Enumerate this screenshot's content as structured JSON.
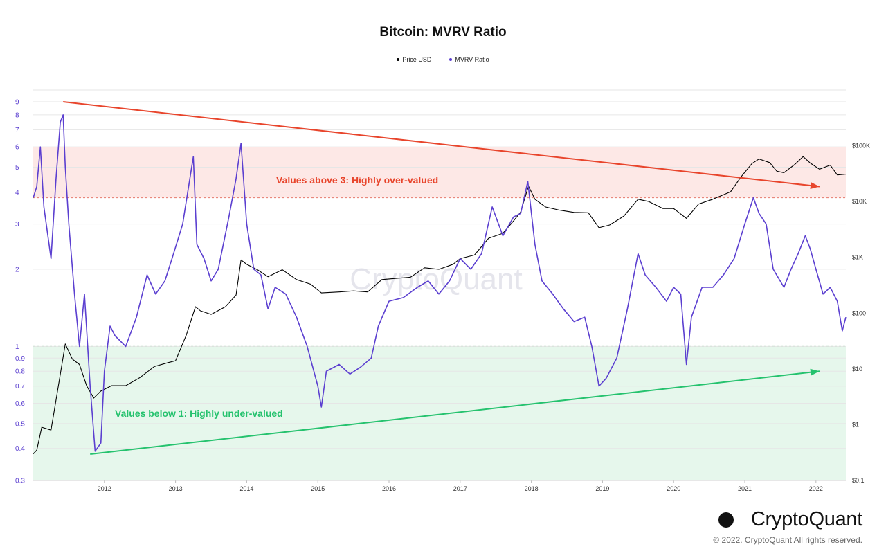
{
  "chart_data": {
    "type": "line",
    "title": "Bitcoin: MVRV Ratio",
    "legend": [
      {
        "name": "Price USD",
        "color": "#000000"
      },
      {
        "name": "MVRV Ratio",
        "color": "#5b3fd0"
      }
    ],
    "legend_position": "top-center",
    "x_ticks": [
      "2012",
      "2013",
      "2014",
      "2015",
      "2016",
      "2017",
      "2018",
      "2019",
      "2020",
      "2021",
      "2022"
    ],
    "x_range": [
      2011.0,
      2022.42
    ],
    "y_left": {
      "scale": "log",
      "range": [
        0.3,
        10
      ],
      "ticks": [
        "0.3",
        "0.4",
        "0.5",
        "0.6",
        "0.7",
        "0.8",
        "0.9",
        "1",
        "2",
        "3",
        "4",
        "5",
        "6",
        "7",
        "8",
        "9"
      ],
      "tick_values": [
        0.3,
        0.4,
        0.5,
        0.6,
        0.7,
        0.8,
        0.9,
        1,
        2,
        3,
        4,
        5,
        6,
        7,
        8,
        9
      ]
    },
    "y_right": {
      "scale": "log",
      "range": [
        0.1,
        1000000
      ],
      "ticks": [
        "$0.1",
        "$1",
        "$10",
        "$100",
        "$1K",
        "$10K",
        "$100K"
      ],
      "tick_values": [
        0.1,
        1,
        10,
        100,
        1000,
        10000,
        100000
      ]
    },
    "zones": [
      {
        "name": "over-valued",
        "from": 3.8,
        "to": 6,
        "color": "#fde8e6",
        "line_color": "#e57a6e"
      },
      {
        "name": "under-valued",
        "from": 0.3,
        "to": 1,
        "color": "#e6f7ec",
        "line_color": "#6cc486"
      }
    ],
    "series": [
      {
        "name": "MVRV Ratio",
        "color": "#5b3fd0",
        "axis": "left",
        "points": [
          [
            2011.0,
            3.8
          ],
          [
            2011.05,
            4.2
          ],
          [
            2011.1,
            6.0
          ],
          [
            2011.15,
            3.5
          ],
          [
            2011.25,
            2.2
          ],
          [
            2011.32,
            4.5
          ],
          [
            2011.38,
            7.5
          ],
          [
            2011.42,
            8.0
          ],
          [
            2011.45,
            5.0
          ],
          [
            2011.5,
            3.0
          ],
          [
            2011.58,
            1.6
          ],
          [
            2011.65,
            1.0
          ],
          [
            2011.72,
            1.6
          ],
          [
            2011.8,
            0.7
          ],
          [
            2011.87,
            0.39
          ],
          [
            2011.95,
            0.42
          ],
          [
            2012.0,
            0.8
          ],
          [
            2012.08,
            1.2
          ],
          [
            2012.15,
            1.1
          ],
          [
            2012.3,
            1.0
          ],
          [
            2012.45,
            1.3
          ],
          [
            2012.6,
            1.9
          ],
          [
            2012.72,
            1.6
          ],
          [
            2012.85,
            1.8
          ],
          [
            2012.95,
            2.2
          ],
          [
            2013.1,
            3.0
          ],
          [
            2013.25,
            5.5
          ],
          [
            2013.3,
            2.5
          ],
          [
            2013.4,
            2.2
          ],
          [
            2013.5,
            1.8
          ],
          [
            2013.6,
            2.0
          ],
          [
            2013.75,
            3.2
          ],
          [
            2013.85,
            4.5
          ],
          [
            2013.92,
            6.2
          ],
          [
            2014.0,
            3.0
          ],
          [
            2014.1,
            2.0
          ],
          [
            2014.2,
            1.9
          ],
          [
            2014.3,
            1.4
          ],
          [
            2014.4,
            1.7
          ],
          [
            2014.55,
            1.6
          ],
          [
            2014.7,
            1.3
          ],
          [
            2014.85,
            1.0
          ],
          [
            2015.0,
            0.7
          ],
          [
            2015.05,
            0.58
          ],
          [
            2015.12,
            0.8
          ],
          [
            2015.3,
            0.85
          ],
          [
            2015.45,
            0.78
          ],
          [
            2015.6,
            0.83
          ],
          [
            2015.75,
            0.9
          ],
          [
            2015.85,
            1.2
          ],
          [
            2016.0,
            1.5
          ],
          [
            2016.2,
            1.55
          ],
          [
            2016.4,
            1.7
          ],
          [
            2016.55,
            1.8
          ],
          [
            2016.7,
            1.6
          ],
          [
            2016.85,
            1.8
          ],
          [
            2017.0,
            2.2
          ],
          [
            2017.15,
            2.0
          ],
          [
            2017.3,
            2.3
          ],
          [
            2017.45,
            3.5
          ],
          [
            2017.6,
            2.7
          ],
          [
            2017.75,
            3.2
          ],
          [
            2017.85,
            3.3
          ],
          [
            2017.95,
            4.4
          ],
          [
            2018.05,
            2.5
          ],
          [
            2018.15,
            1.8
          ],
          [
            2018.3,
            1.6
          ],
          [
            2018.45,
            1.4
          ],
          [
            2018.6,
            1.25
          ],
          [
            2018.75,
            1.3
          ],
          [
            2018.85,
            1.0
          ],
          [
            2018.95,
            0.7
          ],
          [
            2019.05,
            0.75
          ],
          [
            2019.2,
            0.9
          ],
          [
            2019.35,
            1.4
          ],
          [
            2019.5,
            2.3
          ],
          [
            2019.6,
            1.9
          ],
          [
            2019.75,
            1.7
          ],
          [
            2019.9,
            1.5
          ],
          [
            2020.0,
            1.7
          ],
          [
            2020.1,
            1.6
          ],
          [
            2020.18,
            0.85
          ],
          [
            2020.25,
            1.3
          ],
          [
            2020.4,
            1.7
          ],
          [
            2020.55,
            1.7
          ],
          [
            2020.7,
            1.9
          ],
          [
            2020.85,
            2.2
          ],
          [
            2021.0,
            3.0
          ],
          [
            2021.12,
            3.8
          ],
          [
            2021.2,
            3.3
          ],
          [
            2021.3,
            3.0
          ],
          [
            2021.4,
            2.0
          ],
          [
            2021.55,
            1.7
          ],
          [
            2021.65,
            2.0
          ],
          [
            2021.75,
            2.3
          ],
          [
            2021.85,
            2.7
          ],
          [
            2021.92,
            2.4
          ],
          [
            2022.0,
            2.0
          ],
          [
            2022.1,
            1.6
          ],
          [
            2022.2,
            1.7
          ],
          [
            2022.3,
            1.5
          ],
          [
            2022.37,
            1.15
          ],
          [
            2022.42,
            1.3
          ]
        ]
      },
      {
        "name": "Price USD",
        "color": "#000000",
        "axis": "right",
        "points": [
          [
            2011.0,
            0.3
          ],
          [
            2011.05,
            0.35
          ],
          [
            2011.12,
            0.9
          ],
          [
            2011.25,
            0.8
          ],
          [
            2011.38,
            8
          ],
          [
            2011.45,
            28
          ],
          [
            2011.55,
            15
          ],
          [
            2011.65,
            12
          ],
          [
            2011.75,
            5
          ],
          [
            2011.85,
            3
          ],
          [
            2011.95,
            4
          ],
          [
            2012.1,
            5
          ],
          [
            2012.3,
            5
          ],
          [
            2012.5,
            7
          ],
          [
            2012.7,
            11
          ],
          [
            2012.9,
            13
          ],
          [
            2013.0,
            14
          ],
          [
            2013.15,
            40
          ],
          [
            2013.28,
            130
          ],
          [
            2013.35,
            110
          ],
          [
            2013.5,
            95
          ],
          [
            2013.7,
            130
          ],
          [
            2013.85,
            210
          ],
          [
            2013.92,
            900
          ],
          [
            2014.0,
            750
          ],
          [
            2014.15,
            600
          ],
          [
            2014.3,
            450
          ],
          [
            2014.5,
            600
          ],
          [
            2014.7,
            400
          ],
          [
            2014.9,
            330
          ],
          [
            2015.05,
            230
          ],
          [
            2015.3,
            240
          ],
          [
            2015.5,
            250
          ],
          [
            2015.7,
            240
          ],
          [
            2015.9,
            400
          ],
          [
            2016.1,
            420
          ],
          [
            2016.3,
            440
          ],
          [
            2016.5,
            650
          ],
          [
            2016.7,
            610
          ],
          [
            2016.9,
            750
          ],
          [
            2017.0,
            950
          ],
          [
            2017.2,
            1100
          ],
          [
            2017.4,
            2200
          ],
          [
            2017.6,
            2700
          ],
          [
            2017.75,
            4500
          ],
          [
            2017.85,
            6500
          ],
          [
            2017.96,
            19000
          ],
          [
            2018.05,
            11000
          ],
          [
            2018.2,
            8000
          ],
          [
            2018.4,
            7000
          ],
          [
            2018.6,
            6400
          ],
          [
            2018.8,
            6300
          ],
          [
            2018.95,
            3400
          ],
          [
            2019.1,
            3800
          ],
          [
            2019.3,
            5500
          ],
          [
            2019.5,
            11000
          ],
          [
            2019.65,
            10000
          ],
          [
            2019.85,
            7500
          ],
          [
            2020.0,
            7500
          ],
          [
            2020.18,
            5000
          ],
          [
            2020.35,
            9000
          ],
          [
            2020.55,
            11000
          ],
          [
            2020.8,
            15000
          ],
          [
            2020.95,
            28000
          ],
          [
            2021.1,
            48000
          ],
          [
            2021.2,
            58000
          ],
          [
            2021.35,
            50000
          ],
          [
            2021.45,
            35000
          ],
          [
            2021.55,
            33000
          ],
          [
            2021.7,
            46000
          ],
          [
            2021.82,
            64000
          ],
          [
            2021.92,
            49000
          ],
          [
            2022.05,
            38000
          ],
          [
            2022.2,
            45000
          ],
          [
            2022.3,
            30000
          ],
          [
            2022.42,
            31000
          ]
        ]
      }
    ],
    "annotations": [
      {
        "text": "Values above 3: Highly over-valued",
        "color": "#e8452c"
      },
      {
        "text": "Values below 1: Highly under-valued",
        "color": "#25c26e"
      }
    ],
    "trend_arrows": [
      {
        "color": "#e8452c",
        "from": [
          2011.42,
          9.0
        ],
        "to": [
          2022.05,
          4.2
        ]
      },
      {
        "color": "#25c26e",
        "from": [
          2011.8,
          0.38
        ],
        "to": [
          2022.05,
          0.8
        ]
      }
    ],
    "watermark": "CryptoQuant",
    "grid": true
  },
  "brand": {
    "name": "CryptoQuant",
    "logo_icon": "cryptoquant-logo-icon"
  },
  "footer": {
    "copyright": "© 2022. CryptoQuant All rights reserved."
  }
}
